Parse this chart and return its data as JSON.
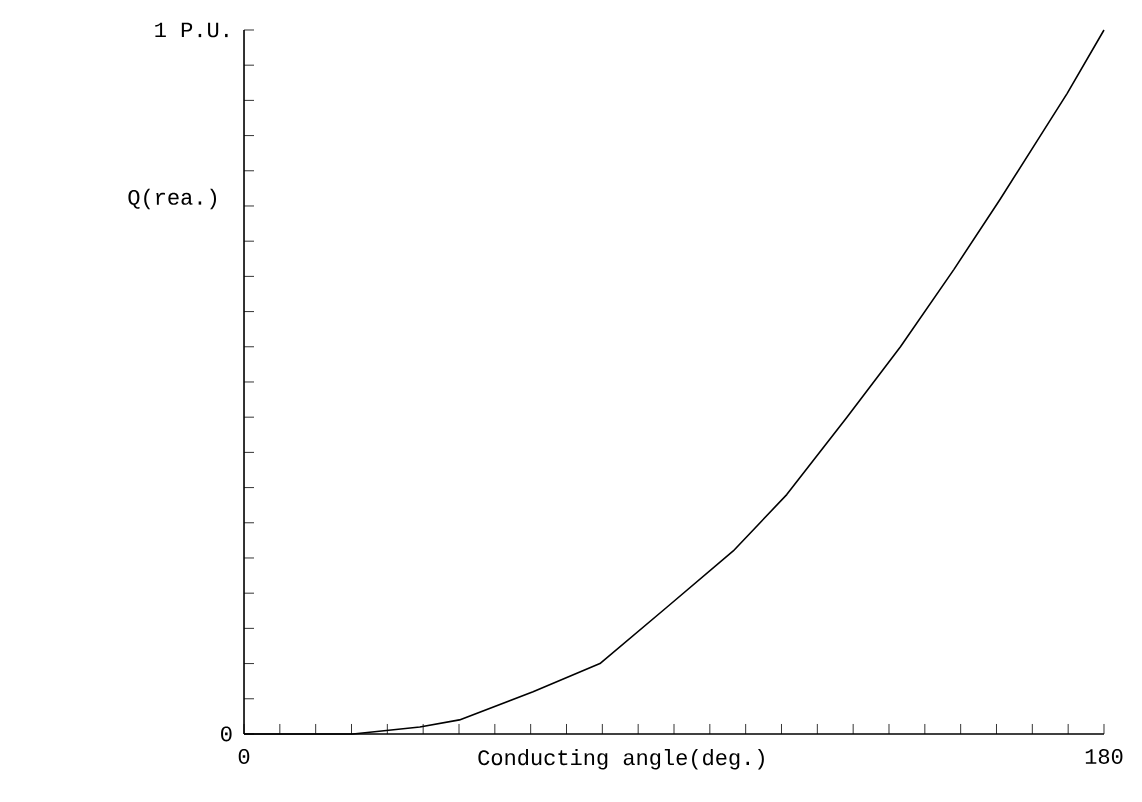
{
  "chart_data": {
    "type": "line",
    "xlabel": "Conducting angle(deg.)",
    "ylabel": "Q(rea.)",
    "x": [
      0,
      22.8,
      36.8,
      45.1,
      60.5,
      74.5,
      88.5,
      102.4,
      113.6,
      126.2,
      137.4,
      148.6,
      158.3,
      166.7,
      172.3,
      180
    ],
    "series": [
      {
        "color": "#000000",
        "values": [
          0,
          0.0,
          0.01,
          0.02,
          0.06,
          0.1,
          0.18,
          0.26,
          0.34,
          0.45,
          0.55,
          0.66,
          0.76,
          0.85,
          0.91,
          1.0
        ]
      }
    ],
    "xlim": [
      0,
      180
    ],
    "ylim": [
      0,
      1
    ],
    "xticks": [
      {
        "value": 0,
        "label": "0"
      },
      {
        "value": 7.5,
        "label": null
      },
      {
        "value": 15,
        "label": null
      },
      {
        "value": 22.5,
        "label": null
      },
      {
        "value": 30,
        "label": null
      },
      {
        "value": 37.5,
        "label": null
      },
      {
        "value": 45,
        "label": null
      },
      {
        "value": 52.5,
        "label": null
      },
      {
        "value": 60,
        "label": null
      },
      {
        "value": 67.5,
        "label": null
      },
      {
        "value": 75,
        "label": null
      },
      {
        "value": 82.5,
        "label": null
      },
      {
        "value": 90,
        "label": null
      },
      {
        "value": 97.5,
        "label": null
      },
      {
        "value": 105,
        "label": null
      },
      {
        "value": 112.5,
        "label": null
      },
      {
        "value": 120,
        "label": null
      },
      {
        "value": 127.5,
        "label": null
      },
      {
        "value": 135,
        "label": null
      },
      {
        "value": 142.5,
        "label": null
      },
      {
        "value": 150,
        "label": null
      },
      {
        "value": 157.5,
        "label": null
      },
      {
        "value": 165,
        "label": null
      },
      {
        "value": 172.5,
        "label": null
      },
      {
        "value": 180,
        "label": "180"
      }
    ],
    "yticks": [
      {
        "value": 0,
        "label": "0"
      },
      {
        "value": 0.05,
        "label": null
      },
      {
        "value": 0.1,
        "label": null
      },
      {
        "value": 0.15,
        "label": null
      },
      {
        "value": 0.2,
        "label": null
      },
      {
        "value": 0.25,
        "label": null
      },
      {
        "value": 0.3,
        "label": null
      },
      {
        "value": 0.35,
        "label": null
      },
      {
        "value": 0.4,
        "label": null
      },
      {
        "value": 0.45,
        "label": null
      },
      {
        "value": 0.5,
        "label": null
      },
      {
        "value": 0.55,
        "label": null
      },
      {
        "value": 0.6,
        "label": null
      },
      {
        "value": 0.65,
        "label": null
      },
      {
        "value": 0.7,
        "label": null
      },
      {
        "value": 0.75,
        "label": null
      },
      {
        "value": 0.8,
        "label": null
      },
      {
        "value": 0.85,
        "label": null
      },
      {
        "value": 0.9,
        "label": null
      },
      {
        "value": 0.95,
        "label": null
      },
      {
        "value": 1,
        "label": "1 P.U."
      }
    ],
    "marker": "none",
    "line_style": "solid"
  }
}
